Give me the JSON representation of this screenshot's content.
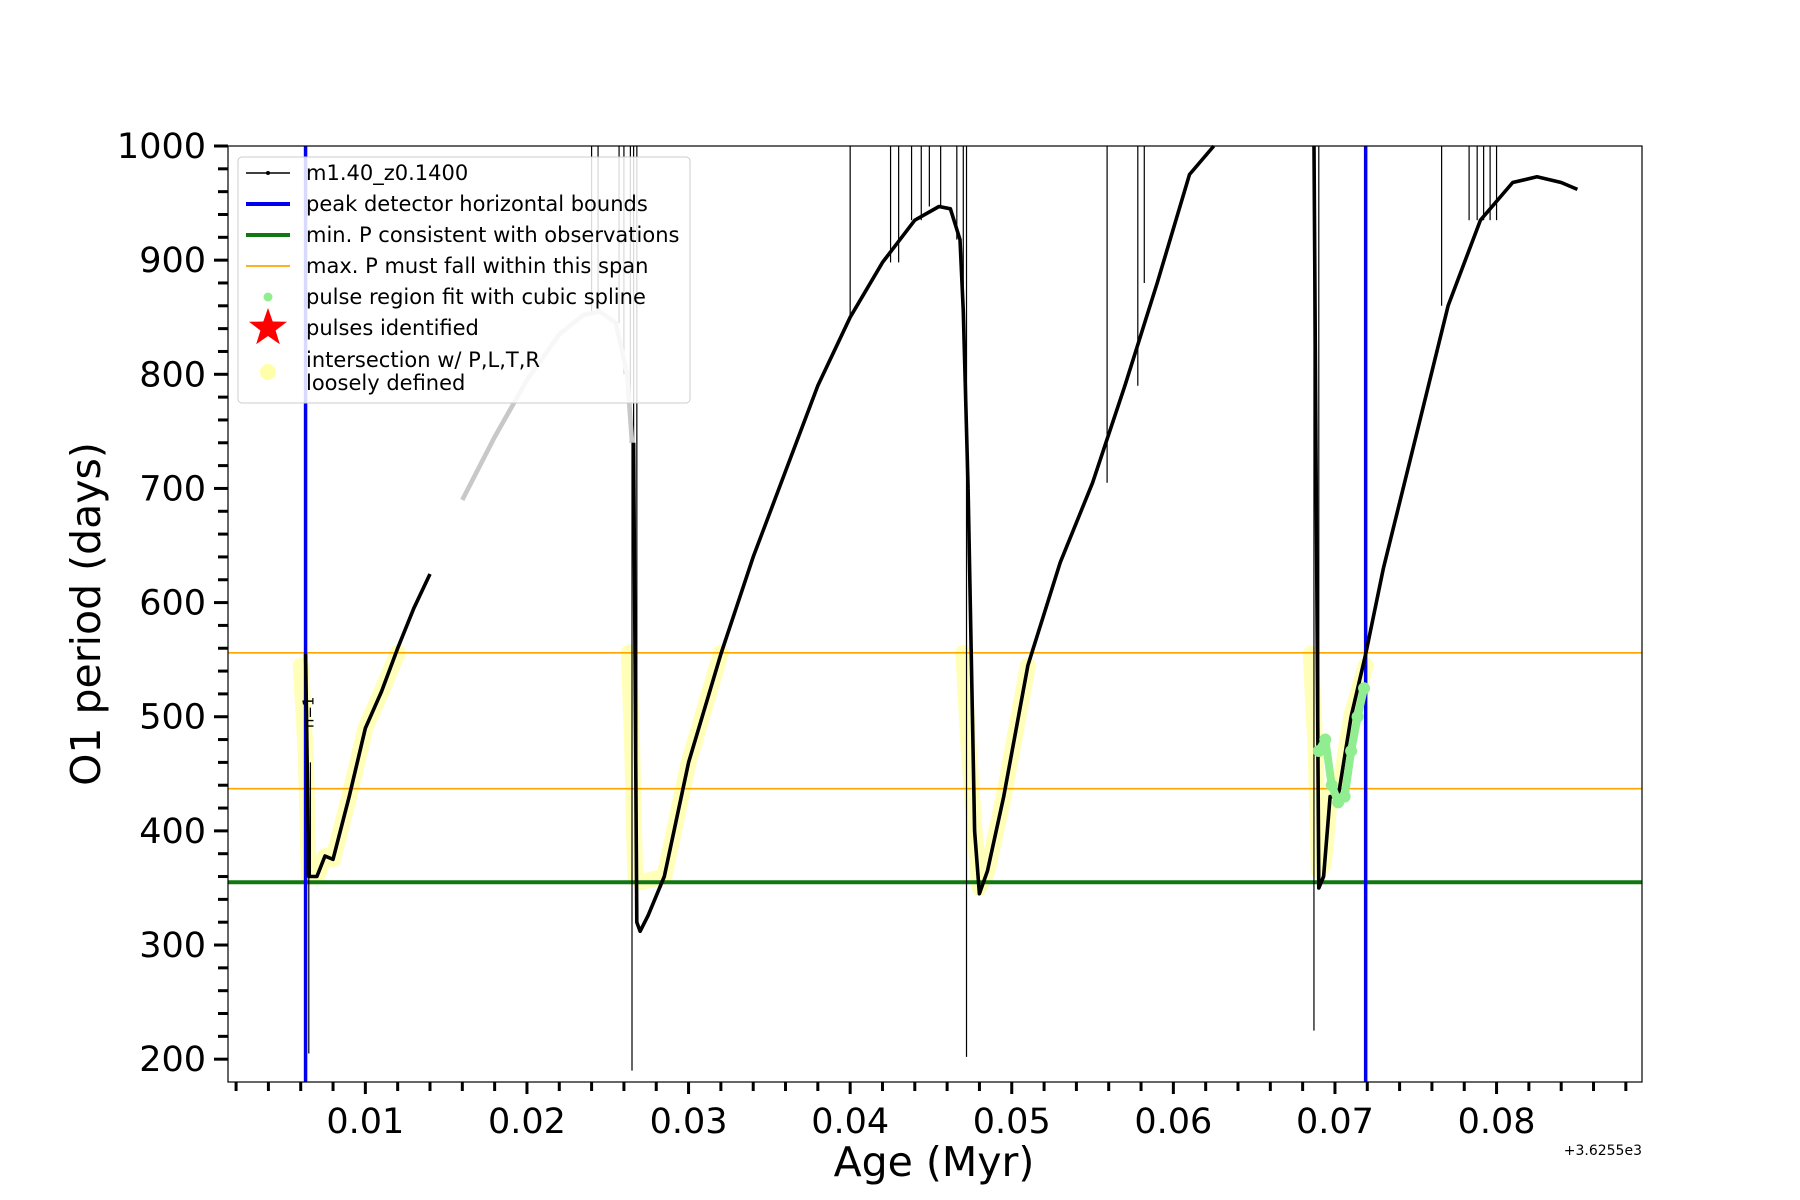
{
  "chart_data": {
    "type": "line",
    "xlabel": "Age (Myr)",
    "ylabel": "O1 period (days)",
    "x_offset_label": "+3.6255e3",
    "xlim": [
      0.0015,
      0.089
    ],
    "ylim": [
      180,
      1000
    ],
    "x_ticks": [
      0.01,
      0.02,
      0.03,
      0.04,
      0.05,
      0.06,
      0.07,
      0.08
    ],
    "x_tick_labels": [
      "0.01",
      "0.02",
      "0.03",
      "0.04",
      "0.05",
      "0.06",
      "0.07",
      "0.08"
    ],
    "y_ticks": [
      200,
      300,
      400,
      500,
      600,
      700,
      800,
      900,
      1000
    ],
    "y_tick_labels": [
      "200",
      "300",
      "400",
      "500",
      "600",
      "700",
      "800",
      "900",
      "1000"
    ],
    "grid": false,
    "legend_position": "top-left",
    "legend": [
      {
        "label": "m1.40_z0.1400",
        "style": "line-dot",
        "color": "#000000"
      },
      {
        "label": "peak detector horizontal bounds",
        "style": "line",
        "color": "#0000ee"
      },
      {
        "label": "min. P consistent with observations",
        "style": "line",
        "color": "#117711"
      },
      {
        "label": "max. P must fall within this span",
        "style": "thin-line",
        "color": "#ffa500"
      },
      {
        "label": "pulse region fit with cubic spline",
        "style": "dot",
        "color": "#90ee90"
      },
      {
        "label": "pulses identified",
        "style": "star",
        "color": "#ff0000"
      },
      {
        "label": "intersection w/ P,L,T,R",
        "label2": "loosely defined",
        "style": "big-dot",
        "color": "#ffffaa"
      }
    ],
    "vertical_lines": {
      "color": "#0000ee",
      "x": [
        0.0063,
        0.0719
      ]
    },
    "horizontal_lines": [
      {
        "y": 556,
        "color": "#ffa500"
      },
      {
        "y": 437,
        "color": "#ffa500"
      },
      {
        "y": 355,
        "color": "#117711"
      }
    ],
    "annotation": {
      "text": "n=1",
      "x": 0.0068,
      "y": 490
    },
    "series": [
      {
        "name": "m1.40_z0.1400",
        "color": "#000000",
        "cycles": [
          {
            "curve": [
              [
                0.0063,
                555
              ],
              [
                0.0065,
                360
              ],
              [
                0.007,
                360
              ],
              [
                0.0075,
                378
              ],
              [
                0.008,
                375
              ],
              [
                0.009,
                430
              ],
              [
                0.01,
                490
              ],
              [
                0.011,
                522
              ],
              [
                0.012,
                560
              ],
              [
                0.013,
                595
              ],
              [
                0.014,
                625
              ],
              [
                0.016,
                690
              ],
              [
                0.018,
                745
              ],
              [
                0.02,
                795
              ],
              [
                0.022,
                835
              ],
              [
                0.0235,
                852
              ],
              [
                0.0245,
                855
              ],
              [
                0.0255,
                845
              ],
              [
                0.0262,
                800
              ],
              [
                0.0265,
                740
              ]
            ],
            "highlight_segment": [
              0.015,
              0.0265
            ],
            "spikes": [
              [
                0.0065,
                205
              ],
              [
                0.0064,
                480
              ],
              [
                0.0066,
                460
              ],
              [
                0.024,
                1000
              ],
              [
                0.0244,
                1000
              ],
              [
                0.0257,
                1000
              ],
              [
                0.026,
                1000
              ],
              [
                0.0264,
                1000
              ],
              [
                0.0266,
                1000
              ]
            ]
          },
          {
            "curve": [
              [
                0.0266,
                740
              ],
              [
                0.0268,
                320
              ],
              [
                0.027,
                312
              ],
              [
                0.0275,
                326
              ],
              [
                0.0285,
                360
              ],
              [
                0.03,
                460
              ],
              [
                0.032,
                555
              ],
              [
                0.034,
                640
              ],
              [
                0.036,
                715
              ],
              [
                0.038,
                790
              ],
              [
                0.04,
                850
              ],
              [
                0.042,
                898
              ],
              [
                0.044,
                935
              ],
              [
                0.0455,
                947
              ],
              [
                0.0462,
                945
              ],
              [
                0.0468,
                918
              ],
              [
                0.047,
                855
              ],
              [
                0.0473,
                700
              ]
            ],
            "spikes": [
              [
                0.0265,
                190
              ],
              [
                0.0268,
                1000
              ],
              [
                0.04,
                1000
              ],
              [
                0.0425,
                1000
              ],
              [
                0.043,
                1000
              ],
              [
                0.0438,
                1000
              ],
              [
                0.0444,
                1000
              ],
              [
                0.0449,
                1000
              ],
              [
                0.0456,
                1000
              ],
              [
                0.0466,
                1000
              ],
              [
                0.047,
                1000
              ],
              [
                0.0472,
                1000
              ]
            ]
          },
          {
            "curve": [
              [
                0.0473,
                700
              ],
              [
                0.0477,
                400
              ],
              [
                0.048,
                345
              ],
              [
                0.0485,
                365
              ],
              [
                0.0495,
                430
              ],
              [
                0.051,
                545
              ],
              [
                0.053,
                635
              ],
              [
                0.055,
                705
              ],
              [
                0.057,
                790
              ],
              [
                0.059,
                880
              ],
              [
                0.061,
                975
              ],
              [
                0.0625,
                1000
              ]
            ],
            "spikes": [
              [
                0.0472,
                202
              ],
              [
                0.0559,
                1000
              ],
              [
                0.0578,
                1000
              ],
              [
                0.0582,
                1000
              ]
            ]
          },
          {
            "curve": [
              [
                0.0687,
                1000
              ],
              [
                0.069,
                350
              ],
              [
                0.0693,
                360
              ],
              [
                0.0697,
                430
              ],
              [
                0.0702,
                430
              ],
              [
                0.071,
                500
              ],
              [
                0.0719,
                555
              ],
              [
                0.073,
                630
              ],
              [
                0.075,
                745
              ],
              [
                0.077,
                860
              ],
              [
                0.079,
                935
              ],
              [
                0.081,
                968
              ],
              [
                0.0825,
                973
              ],
              [
                0.084,
                968
              ],
              [
                0.085,
                962
              ]
            ],
            "spikes": [
              [
                0.0687,
                225
              ],
              [
                0.069,
                1000
              ],
              [
                0.0766,
                1000
              ],
              [
                0.0783,
                1000
              ],
              [
                0.0788,
                1000
              ],
              [
                0.0792,
                1000
              ],
              [
                0.0796,
                1000
              ],
              [
                0.08,
                1000
              ]
            ]
          }
        ]
      },
      {
        "name": "pulse region fit with cubic spline",
        "color": "#90ee90",
        "points": [
          [
            0.069,
            470
          ],
          [
            0.0694,
            480
          ],
          [
            0.0698,
            440
          ],
          [
            0.0702,
            425
          ],
          [
            0.0706,
            430
          ],
          [
            0.071,
            470
          ],
          [
            0.0714,
            500
          ],
          [
            0.0718,
            525
          ]
        ]
      },
      {
        "name": "intersection w/ P,L,T,R",
        "color": "#ffff66",
        "segments": [
          [
            [
              0.006,
              545
            ],
            [
              0.0063,
              470
            ],
            [
              0.0065,
              360
            ],
            [
              0.007,
              360
            ],
            [
              0.0075,
              378
            ],
            [
              0.008,
              375
            ],
            [
              0.009,
              430
            ],
            [
              0.01,
              490
            ],
            [
              0.011,
              522
            ],
            [
              0.012,
              556
            ]
          ],
          [
            [
              0.0263,
              556
            ],
            [
              0.0265,
              480
            ],
            [
              0.0267,
              360
            ],
            [
              0.027,
              355
            ],
            [
              0.0285,
              360
            ],
            [
              0.03,
              460
            ],
            [
              0.032,
              556
            ]
          ],
          [
            [
              0.047,
              556
            ],
            [
              0.0473,
              480
            ],
            [
              0.0477,
              400
            ],
            [
              0.048,
              350
            ],
            [
              0.0485,
              365
            ],
            [
              0.0495,
              430
            ],
            [
              0.051,
              545
            ]
          ],
          [
            [
              0.0685,
              555
            ],
            [
              0.0688,
              470
            ],
            [
              0.069,
              365
            ],
            [
              0.0693,
              370
            ],
            [
              0.0697,
              430
            ],
            [
              0.0702,
              430
            ],
            [
              0.071,
              500
            ],
            [
              0.0719,
              545
            ]
          ]
        ]
      }
    ]
  }
}
